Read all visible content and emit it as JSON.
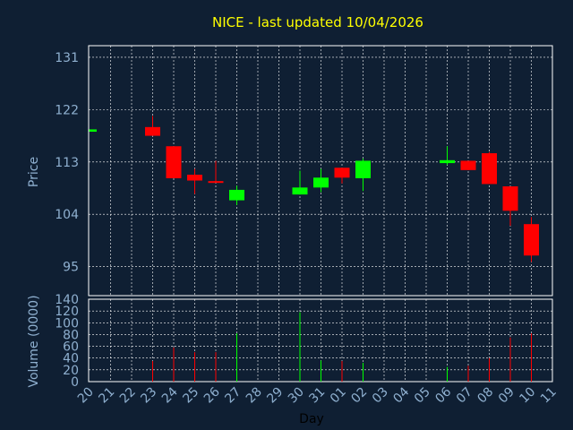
{
  "chart_data": {
    "type": "candlestick",
    "title": "NICE - last updated 10/04/2026",
    "xlabel": "Day",
    "ylabel_price": "Price",
    "ylabel_volume": "Volume (0000)",
    "x_ticks": [
      "20",
      "21",
      "22",
      "23",
      "24",
      "25",
      "26",
      "27",
      "28",
      "29",
      "30",
      "31",
      "01",
      "02",
      "03",
      "04",
      "05",
      "06",
      "07",
      "08",
      "09",
      "10",
      "11"
    ],
    "price_ticks": [
      95,
      104,
      113,
      122,
      131
    ],
    "price_range": [
      90,
      133
    ],
    "volume_ticks": [
      0,
      20,
      40,
      60,
      80,
      100,
      120,
      140
    ],
    "volume_range": [
      0,
      140
    ],
    "up_color": "#00ff00",
    "down_color": "#ff0000",
    "candles": [
      {
        "day": "20",
        "open": 118.2,
        "close": 118.6,
        "high": 118.6,
        "low": 118.2,
        "volume": 0
      },
      {
        "day": "23",
        "open": 119.0,
        "close": 117.5,
        "high": 120.9,
        "low": 117.5,
        "volume": 35
      },
      {
        "day": "24",
        "open": 115.7,
        "close": 110.2,
        "high": 115.7,
        "low": 110.2,
        "volume": 58
      },
      {
        "day": "25",
        "open": 110.8,
        "close": 109.8,
        "high": 111.8,
        "low": 107.5,
        "volume": 50
      },
      {
        "day": "26",
        "open": 109.7,
        "close": 109.5,
        "high": 113.2,
        "low": 109.5,
        "volume": 50
      },
      {
        "day": "27",
        "open": 106.4,
        "close": 108.2,
        "high": 108.9,
        "low": 105.6,
        "volume": 82
      },
      {
        "day": "30",
        "open": 107.4,
        "close": 108.6,
        "high": 111.5,
        "low": 107.4,
        "volume": 118
      },
      {
        "day": "31",
        "open": 108.6,
        "close": 110.3,
        "high": 111.8,
        "low": 107.8,
        "volume": 36
      },
      {
        "day": "01",
        "open": 112.0,
        "close": 110.3,
        "high": 112.0,
        "low": 109.3,
        "volume": 35
      },
      {
        "day": "02",
        "open": 110.2,
        "close": 113.2,
        "high": 113.6,
        "low": 108.0,
        "volume": 32
      },
      {
        "day": "06",
        "open": 112.8,
        "close": 113.3,
        "high": 115.7,
        "low": 112.5,
        "volume": 25
      },
      {
        "day": "07",
        "open": 113.2,
        "close": 111.6,
        "high": 113.2,
        "low": 111.6,
        "volume": 27
      },
      {
        "day": "08",
        "open": 114.5,
        "close": 109.2,
        "high": 114.7,
        "low": 109.2,
        "volume": 40
      },
      {
        "day": "09",
        "open": 108.8,
        "close": 104.6,
        "high": 108.8,
        "low": 102.0,
        "volume": 75
      },
      {
        "day": "10",
        "open": 102.3,
        "close": 96.9,
        "high": 103.5,
        "low": 95.8,
        "volume": 82
      }
    ]
  }
}
